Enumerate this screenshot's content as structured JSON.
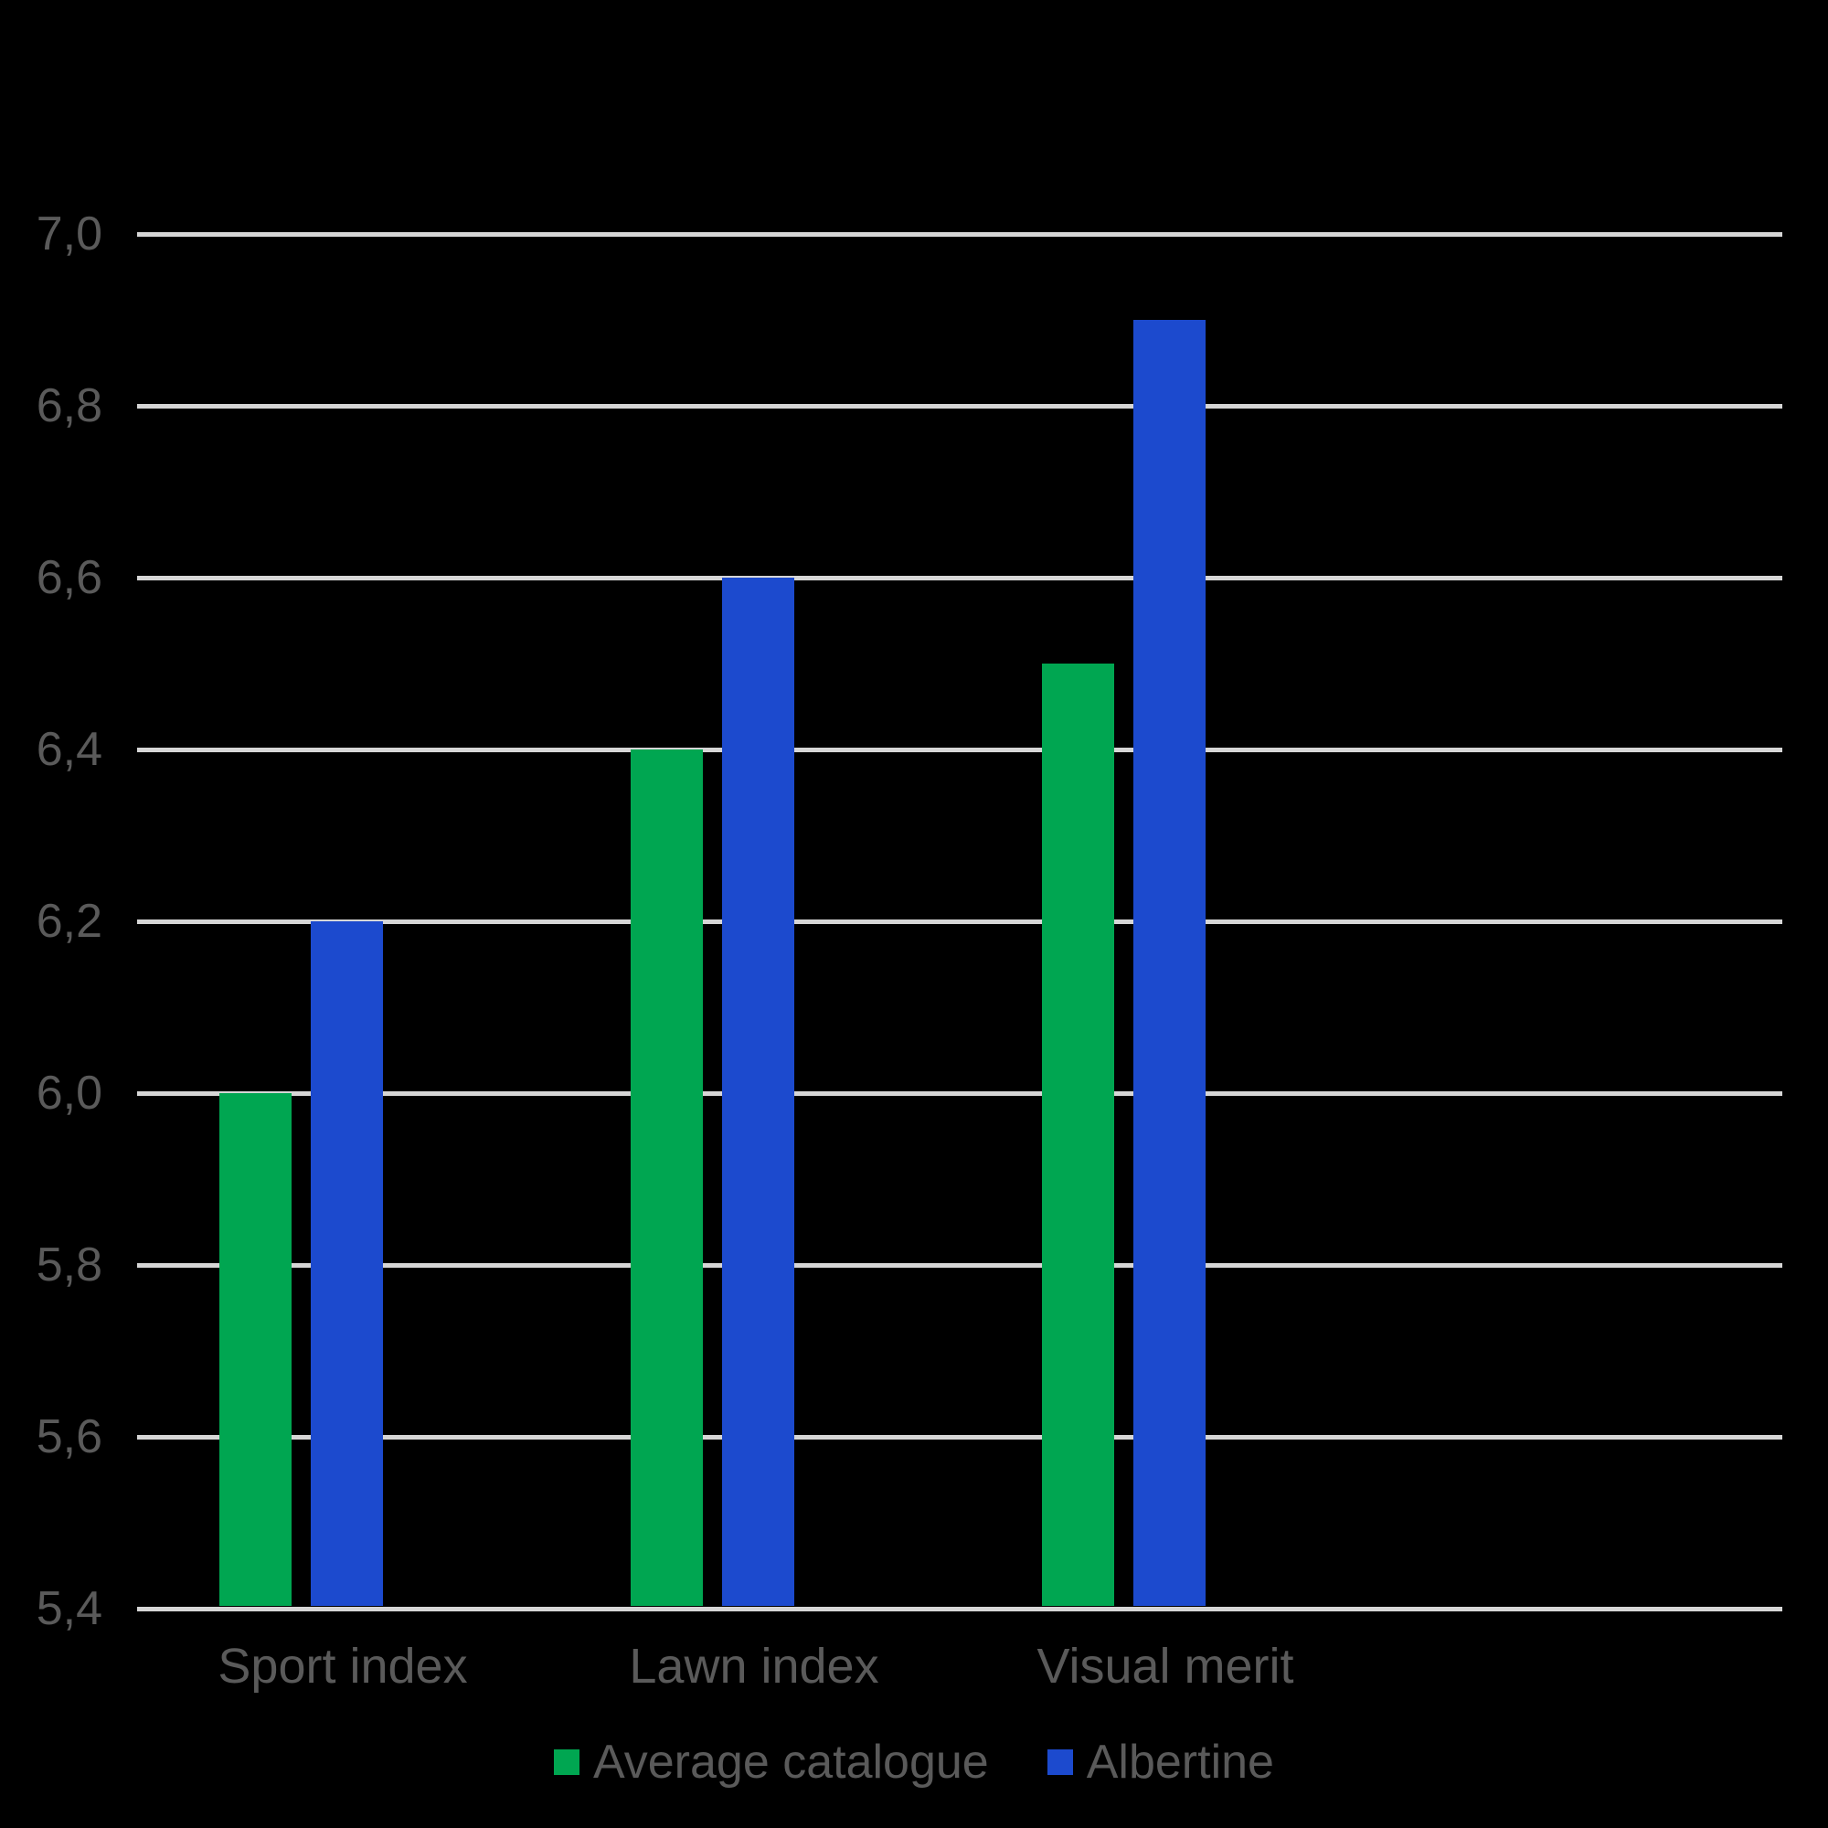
{
  "chart_data": {
    "type": "bar",
    "categories": [
      "Sport index",
      "Lawn index",
      "Visual merit"
    ],
    "series": [
      {
        "name": "Average catalogue",
        "color": "#00a651",
        "values": [
          6.0,
          6.4,
          6.5
        ]
      },
      {
        "name": "Albertine",
        "color": "#1c4ace",
        "values": [
          6.2,
          6.6,
          6.9
        ]
      }
    ],
    "title": "",
    "xlabel": "",
    "ylabel": "",
    "ylim": [
      5.4,
      7.0
    ],
    "ytick_step": 0.2,
    "ytick_labels": [
      "5,4",
      "5,6",
      "5,8",
      "6,0",
      "6,2",
      "6,4",
      "6,6",
      "6,8",
      "7,0"
    ],
    "decimal_separator": ",",
    "grid": true,
    "legend_position": "bottom",
    "colors": {
      "background": "#000000",
      "gridline": "#d6d6d6",
      "text": "#5a5a5a"
    }
  }
}
